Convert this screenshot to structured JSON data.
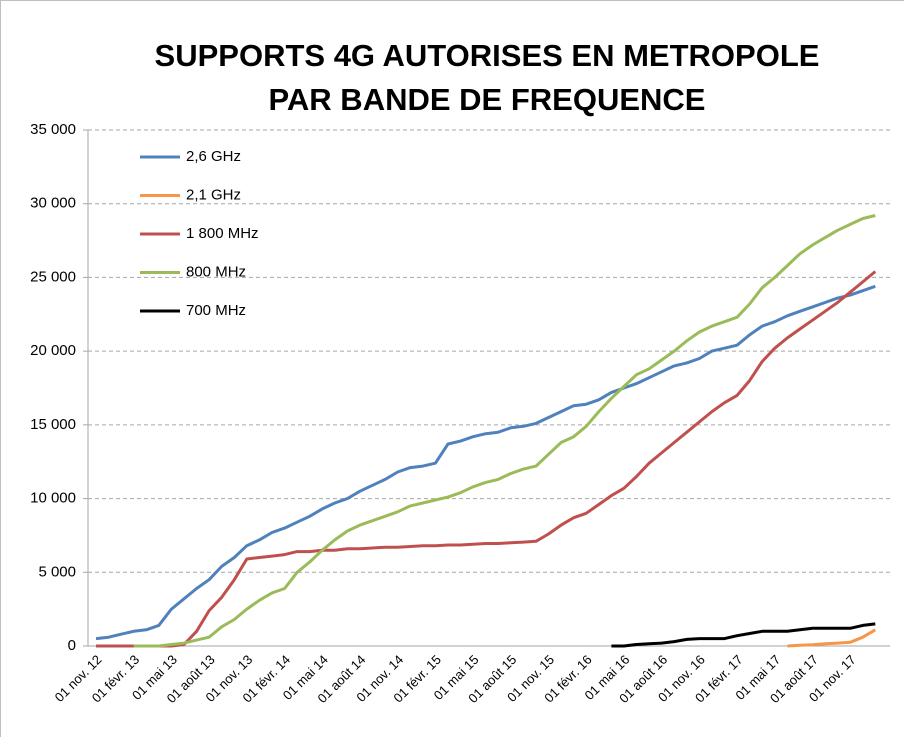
{
  "chart_data": {
    "type": "line",
    "title": [
      "SUPPORTS 4G AUTORISES EN METROPOLE",
      "PAR BANDE DE FREQUENCE"
    ],
    "categories": [
      "01 nov. 12",
      null,
      null,
      "01 févr. 13",
      null,
      null,
      "01 mai 13",
      null,
      null,
      "01 août 13",
      null,
      null,
      "01 nov. 13",
      null,
      null,
      "01 févr. 14",
      null,
      null,
      "01 mai 14",
      null,
      null,
      "01 août 14",
      null,
      null,
      "01 nov. 14",
      null,
      null,
      "01 févr. 15",
      null,
      null,
      "01 mai 15",
      null,
      null,
      "01 août 15",
      null,
      null,
      "01 nov. 15",
      null,
      null,
      "01 févr. 16",
      null,
      null,
      "01 mai 16",
      null,
      null,
      "01 août 16",
      null,
      null,
      "01 nov. 16",
      null,
      null,
      "01 févr. 17",
      null,
      null,
      "01 mai 17",
      null,
      null,
      "01 août 17",
      null,
      null,
      "01 nov. 17",
      null,
      null
    ],
    "series": [
      {
        "name": "2,6 GHz",
        "color": "#4f81bd",
        "values": [
          500,
          600,
          800,
          1000,
          1100,
          1400,
          2500,
          3200,
          3900,
          4500,
          5400,
          6000,
          6800,
          7200,
          7700,
          8000,
          8400,
          8800,
          9300,
          9700,
          10000,
          10500,
          10900,
          11300,
          11800,
          12100,
          12200,
          12400,
          13700,
          13900,
          14200,
          14400,
          14500,
          14800,
          14900,
          15100,
          15500,
          15900,
          16300,
          16400,
          16700,
          17200,
          17500,
          17800,
          18200,
          18600,
          19000,
          19200,
          19500,
          20000,
          20200,
          20400,
          21100,
          21700,
          22000,
          22400,
          22700,
          23000,
          23300,
          23600,
          23800,
          24100,
          24400
        ]
      },
      {
        "name": "2,1 GHz",
        "color": "#f79646",
        "values": [
          null,
          null,
          null,
          null,
          null,
          null,
          null,
          null,
          null,
          null,
          null,
          null,
          null,
          null,
          null,
          null,
          null,
          null,
          null,
          null,
          null,
          null,
          null,
          null,
          null,
          null,
          null,
          null,
          null,
          null,
          null,
          null,
          null,
          null,
          null,
          null,
          null,
          null,
          null,
          null,
          null,
          null,
          null,
          null,
          null,
          null,
          null,
          null,
          null,
          null,
          null,
          null,
          null,
          null,
          null,
          0,
          50,
          80,
          150,
          200,
          250,
          600,
          1100
        ]
      },
      {
        "name": "1 800 MHz",
        "color": "#c0504d",
        "values": [
          0,
          0,
          0,
          0,
          0,
          0,
          0,
          100,
          1000,
          2400,
          3300,
          4500,
          5900,
          6000,
          6100,
          6200,
          6400,
          6400,
          6500,
          6500,
          6600,
          6600,
          6650,
          6700,
          6700,
          6750,
          6800,
          6800,
          6850,
          6850,
          6900,
          6950,
          6950,
          7000,
          7050,
          7100,
          7600,
          8200,
          8700,
          9000,
          9600,
          10200,
          10700,
          11500,
          12400,
          13100,
          13800,
          14500,
          15200,
          15900,
          16500,
          17000,
          18000,
          19300,
          20200,
          20900,
          21500,
          22100,
          22700,
          23300,
          24000,
          24700,
          25400
        ]
      },
      {
        "name": "800 MHz",
        "color": "#9bbb59",
        "values": [
          null,
          null,
          null,
          0,
          0,
          0,
          100,
          200,
          400,
          600,
          1300,
          1800,
          2500,
          3100,
          3600,
          3900,
          5000,
          5700,
          6500,
          7200,
          7800,
          8200,
          8500,
          8800,
          9100,
          9500,
          9700,
          9900,
          10100,
          10400,
          10800,
          11100,
          11300,
          11700,
          12000,
          12200,
          13000,
          13800,
          14200,
          14900,
          15900,
          16800,
          17600,
          18400,
          18800,
          19400,
          20000,
          20700,
          21300,
          21700,
          22000,
          22300,
          23200,
          24300,
          25000,
          25800,
          26600,
          27200,
          27700,
          28200,
          28600,
          29000,
          29200
        ]
      },
      {
        "name": "700 MHz",
        "color": "#000000",
        "values": [
          null,
          null,
          null,
          null,
          null,
          null,
          null,
          null,
          null,
          null,
          null,
          null,
          null,
          null,
          null,
          null,
          null,
          null,
          null,
          null,
          null,
          null,
          null,
          null,
          null,
          null,
          null,
          null,
          null,
          null,
          null,
          null,
          null,
          null,
          null,
          null,
          null,
          null,
          null,
          null,
          null,
          0,
          0,
          100,
          150,
          200,
          300,
          450,
          500,
          500,
          500,
          700,
          850,
          1000,
          1000,
          1000,
          1100,
          1200,
          1200,
          1200,
          1200,
          1400,
          1500
        ]
      }
    ],
    "ylim": [
      0,
      35000
    ],
    "yticks": [
      0,
      {
        "value": 5000,
        "label": "5 000"
      },
      {
        "value": 10000,
        "label": "10 000"
      },
      {
        "value": 15000,
        "label": "15 000"
      },
      {
        "value": 20000,
        "label": "20 000"
      },
      {
        "value": 25000,
        "label": "25 000"
      },
      {
        "value": 30000,
        "label": "30 000"
      },
      {
        "value": 35000,
        "label": "35 000"
      }
    ],
    "grid": true,
    "legend": "top-left"
  }
}
